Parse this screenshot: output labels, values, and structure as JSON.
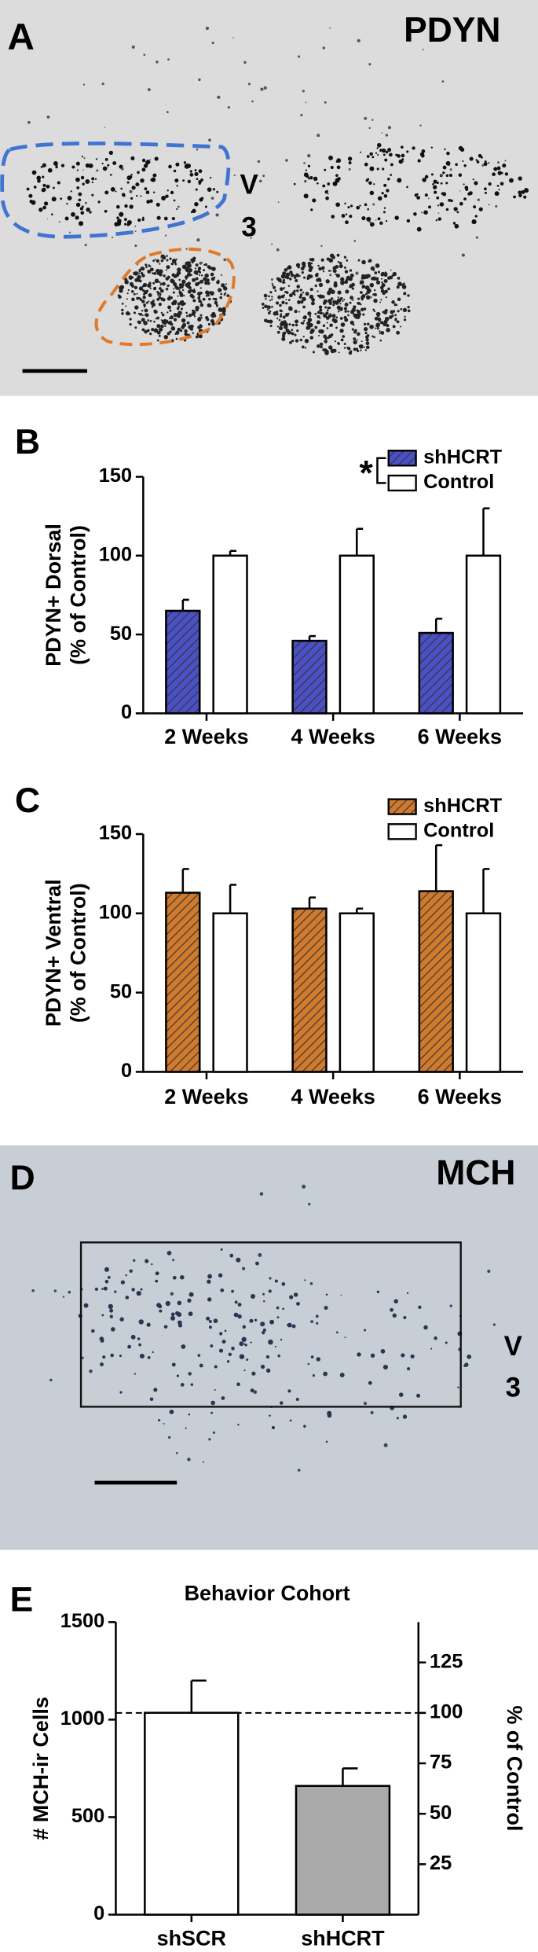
{
  "panels": {
    "a": {
      "label": "A",
      "title": "PDYN",
      "region": [
        "V",
        "3"
      ]
    },
    "d": {
      "label": "D",
      "title": "MCH",
      "region": [
        "V",
        "3"
      ]
    }
  },
  "chart_data": [
    {
      "type": "bar",
      "label": "B",
      "ylabel": [
        "PDYN+ Dorsal",
        "(% of Control)"
      ],
      "categories": [
        "2 Weeks",
        "4 Weeks",
        "6 Weeks"
      ],
      "series": [
        {
          "name": "shHCRT",
          "color": "#4b50c4",
          "hatch": true,
          "values": [
            65,
            46,
            51
          ],
          "errors": [
            7,
            3,
            9
          ]
        },
        {
          "name": "Control",
          "color": "#ffffff",
          "hatch": false,
          "values": [
            100,
            100,
            100
          ],
          "errors": [
            3,
            17,
            30
          ]
        }
      ],
      "ylim": [
        0,
        150
      ],
      "yticks": [
        0,
        50,
        100,
        150
      ],
      "annotation": "*"
    },
    {
      "type": "bar",
      "label": "C",
      "ylabel": [
        "PDYN+ Ventral",
        "(% of Control)"
      ],
      "categories": [
        "2 Weeks",
        "4 Weeks",
        "6 Weeks"
      ],
      "series": [
        {
          "name": "shHCRT",
          "color": "#d07a2e",
          "hatch": true,
          "values": [
            113,
            103,
            114
          ],
          "errors": [
            15,
            7,
            29
          ]
        },
        {
          "name": "Control",
          "color": "#ffffff",
          "hatch": false,
          "values": [
            100,
            100,
            100
          ],
          "errors": [
            18,
            3,
            28
          ]
        }
      ],
      "ylim": [
        0,
        150
      ],
      "yticks": [
        0,
        50,
        100,
        150
      ]
    },
    {
      "type": "bar",
      "label": "E",
      "title": "Behavior Cohort",
      "ylabel": [
        "# MCH-ir Cells"
      ],
      "y2label": "% of Control",
      "categories": [
        "shSCR",
        "shHCRT"
      ],
      "values": [
        1035,
        660
      ],
      "errors": [
        165,
        90
      ],
      "colors": [
        "#ffffff",
        "#aaaaaa"
      ],
      "ylim": [
        0,
        1500
      ],
      "yticks": [
        0,
        500,
        1000,
        1500
      ],
      "y2lim": [
        0,
        145
      ],
      "y2ticks": [
        25,
        50,
        75,
        100,
        125
      ],
      "reference_line": {
        "value": 100,
        "axis": "y2"
      }
    }
  ]
}
